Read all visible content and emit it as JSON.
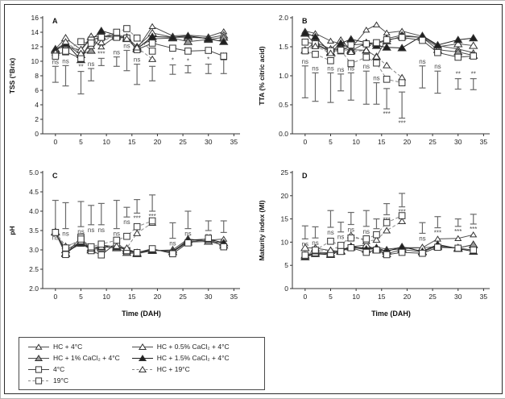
{
  "figure": {
    "background": "#ffffff",
    "axis_color": "#333333",
    "errorbar_color": "#6a6a6a",
    "time_axis_label": "Time (DAH)"
  },
  "treatments": [
    {
      "label": "HC + 4°C",
      "marker": "triangle-open",
      "dash": false,
      "size": 3.2,
      "color": "#4d4d4d"
    },
    {
      "label": "HC + 0.5% CaCl₂ + 4°C",
      "marker": "triangle-open",
      "dash": false,
      "size": 4.2,
      "color": "#4d4d4d"
    },
    {
      "label": "HC + 1% CaCl₂ + 4°C",
      "marker": "triangle-gray",
      "dash": false,
      "size": 4.2,
      "color": "#4d4d4d"
    },
    {
      "label": "HC + 1.5% CaCl₂ + 4°C",
      "marker": "triangle-filled",
      "dash": false,
      "size": 4.2,
      "color": "#1f1f1f"
    },
    {
      "label": "4°C",
      "marker": "square-open",
      "dash": false,
      "size": 3.8,
      "color": "#454545"
    },
    {
      "label": "HC + 19°C",
      "marker": "triangle-open",
      "dash": true,
      "size": 3.6,
      "color": "#8a8a8a"
    },
    {
      "label": "19°C",
      "marker": "square-open",
      "dash": true,
      "size": 3.8,
      "color": "#8a8a8a"
    }
  ],
  "legend": {
    "columns": [
      [
        0,
        2,
        4,
        6
      ],
      [
        1,
        3,
        5
      ]
    ]
  },
  "chart_data": [
    {
      "panel": "A",
      "type": "line",
      "ylabel": "TSS (°Brix)",
      "xlabel": "",
      "ylim": [
        0,
        16
      ],
      "yticks": [
        "0",
        "2",
        "4",
        "6",
        "8",
        "10",
        "12",
        "14",
        "16"
      ],
      "xlim": [
        -2.5,
        36.2
      ],
      "xticks": [
        "0",
        "5",
        "10",
        "15",
        "20",
        "25",
        "30",
        "35"
      ],
      "x": [
        0,
        2,
        5,
        7,
        9,
        12,
        14,
        16,
        19,
        23,
        26,
        30,
        33
      ],
      "sig_pos": "above",
      "series": [
        {
          "name": "HC + 4°C",
          "values": [
            11.6,
            12.1,
            11.5,
            13.2,
            12.0,
            13.5,
            13.2,
            11.7,
            14.8,
            13.5,
            13.6,
            13.4,
            14.1
          ]
        },
        {
          "name": "HC + 0.5% CaCl₂ + 4°C",
          "values": [
            11.7,
            13.2,
            11.6,
            13.4,
            13.4,
            13.7,
            13.3,
            12.0,
            13.9,
            13.3,
            13.3,
            13.2,
            13.6
          ]
        },
        {
          "name": "HC + 1% CaCl₂ + 4°C",
          "values": [
            11.5,
            12.4,
            10.9,
            11.5,
            13.5,
            13.4,
            13.1,
            11.8,
            13.1,
            13.2,
            12.7,
            13.0,
            13.3
          ]
        },
        {
          "name": "HC + 1.5% CaCl₂ + 4°C",
          "values": [
            11.6,
            12.5,
            10.2,
            12.9,
            14.2,
            13.6,
            13.3,
            11.7,
            13.4,
            13.3,
            13.5,
            13.1,
            12.7
          ]
        },
        {
          "name": "4°C",
          "values": [
            10.9,
            11.3,
            10.4,
            12.9,
            13.4,
            13.3,
            13.2,
            11.6,
            12.5,
            11.8,
            11.4,
            11.5,
            10.7
          ]
        },
        {
          "name": "HC + 19°C",
          "values": [
            11.2,
            12.7,
            11.1,
            12.1,
            12.6,
            13.8,
            13.1,
            11.9,
            10.3
          ]
        },
        {
          "name": "19°C",
          "values": [
            10.7,
            11.4,
            12.7,
            12.5,
            13.3,
            14.0,
            14.5,
            13.2,
            11.4
          ]
        }
      ],
      "errorbars": [
        {
          "x": 0,
          "top": 9.3,
          "bottom": 7.1,
          "label": "ns"
        },
        {
          "x": 2,
          "top": 9.4,
          "bottom": 6.6,
          "label": "ns"
        },
        {
          "x": 5,
          "top": 8.6,
          "bottom": 5.5,
          "label": "**"
        },
        {
          "x": 7,
          "top": 9.0,
          "bottom": 7.3,
          "label": "ns"
        },
        {
          "x": 9,
          "top": 10.4,
          "bottom": 9.4,
          "label": "***"
        },
        {
          "x": 12,
          "top": 10.6,
          "bottom": 9.3,
          "label": "ns"
        },
        {
          "x": 14,
          "top": 11.5,
          "bottom": 8.7,
          "label": "ns"
        },
        {
          "x": 16,
          "top": 9.6,
          "bottom": 6.8,
          "label": "ns"
        },
        {
          "x": 19,
          "top": 9.3,
          "bottom": 7.3,
          "label": "***"
        },
        {
          "x": 23,
          "top": 9.5,
          "bottom": 8.2,
          "label": "*"
        },
        {
          "x": 26,
          "top": 9.4,
          "bottom": 8.4,
          "label": "*"
        },
        {
          "x": 30,
          "top": 9.6,
          "bottom": 8.3,
          "label": "*"
        },
        {
          "x": 33,
          "top": 10.2,
          "bottom": 8.3,
          "label": "***"
        }
      ]
    },
    {
      "panel": "B",
      "type": "line",
      "ylabel": "TTA (% citric acid)",
      "xlabel": "",
      "ylim": [
        0,
        2
      ],
      "yticks": [
        "0.0",
        "0.5",
        "1.0",
        "1.5",
        "2.0"
      ],
      "xlim": [
        -2.5,
        36.2
      ],
      "xticks": [
        "0",
        "5",
        "10",
        "15",
        "20",
        "25",
        "30",
        "35"
      ],
      "x": [
        0,
        2,
        5,
        7,
        9,
        12,
        14,
        16,
        19,
        23,
        26,
        30,
        33
      ],
      "sig_pos": "above",
      "series": [
        {
          "name": "HC + 4°C",
          "values": [
            1.77,
            1.73,
            1.6,
            1.55,
            1.47,
            1.79,
            1.88,
            1.74,
            1.77,
            1.68,
            1.52,
            1.46,
            1.4
          ]
        },
        {
          "name": "HC + 0.5% CaCl₂ + 4°C",
          "values": [
            1.44,
            1.58,
            1.46,
            1.61,
            1.45,
            1.44,
            1.33,
            1.64,
            1.7,
            1.66,
            1.5,
            1.55,
            1.52
          ]
        },
        {
          "name": "HC + 1% CaCl₂ + 4°C",
          "values": [
            1.73,
            1.54,
            1.41,
            1.5,
            1.43,
            1.57,
            1.56,
            1.6,
            1.68,
            1.66,
            1.45,
            1.41,
            1.35
          ]
        },
        {
          "name": "HC + 1.5% CaCl₂ + 4°C",
          "values": [
            1.74,
            1.67,
            1.4,
            1.56,
            1.63,
            1.57,
            1.52,
            1.49,
            1.48,
            1.69,
            1.53,
            1.62,
            1.65
          ]
        },
        {
          "name": "4°C",
          "values": [
            1.58,
            1.55,
            1.43,
            1.43,
            1.53,
            1.55,
            1.57,
            1.62,
            1.66,
            1.61,
            1.4,
            1.32,
            1.34
          ]
        },
        {
          "name": "HC + 19°C",
          "values": [
            1.45,
            1.51,
            1.39,
            1.47,
            1.41,
            1.44,
            1.33,
            1.18,
            0.97
          ]
        },
        {
          "name": "19°C",
          "values": [
            1.43,
            1.37,
            1.26,
            1.44,
            1.21,
            1.32,
            1.22,
            0.94,
            0.88
          ]
        }
      ],
      "errorbars": [
        {
          "x": 0,
          "top": 1.17,
          "bottom": 0.62,
          "label": "ns"
        },
        {
          "x": 2,
          "top": 1.05,
          "bottom": 0.56,
          "label": "ns"
        },
        {
          "x": 5,
          "top": 1.05,
          "bottom": 0.54,
          "label": "ns"
        },
        {
          "x": 7,
          "top": 1.03,
          "bottom": 0.74,
          "label": "ns"
        },
        {
          "x": 9,
          "top": 1.05,
          "bottom": 0.58,
          "label": "ns"
        },
        {
          "x": 12,
          "top": 1.08,
          "bottom": 0.51,
          "label": "ns"
        },
        {
          "x": 14,
          "top": 0.88,
          "bottom": 0.51,
          "label": "ns"
        },
        {
          "x": 16,
          "top": 0.78,
          "bottom": 0.43,
          "label": "***",
          "pos": "below"
        },
        {
          "x": 19,
          "top": 0.72,
          "bottom": 0.27,
          "label": "***",
          "pos": "below"
        },
        {
          "x": 23,
          "top": 1.17,
          "bottom": 0.79,
          "label": "ns"
        },
        {
          "x": 26,
          "top": 1.08,
          "bottom": 0.7,
          "label": "ns"
        },
        {
          "x": 30,
          "top": 0.95,
          "bottom": 0.77,
          "label": "**"
        },
        {
          "x": 33,
          "top": 0.95,
          "bottom": 0.76,
          "label": "**"
        }
      ]
    },
    {
      "panel": "C",
      "type": "line",
      "ylabel": "pH",
      "xlabel": "Time (DAH)",
      "ylim": [
        2,
        5
      ],
      "yticks": [
        "2.0",
        "2.5",
        "3.0",
        "3.5",
        "4.0",
        "4.5",
        "5.0"
      ],
      "xlim": [
        -2.5,
        36.2
      ],
      "xticks": [
        "0",
        "5",
        "10",
        "15",
        "20",
        "25",
        "30",
        "35"
      ],
      "x": [
        0,
        2,
        5,
        7,
        9,
        12,
        14,
        16,
        19,
        23,
        26,
        30,
        33
      ],
      "sig_pos": "below",
      "series": [
        {
          "name": "HC + 4°C",
          "values": [
            3.47,
            2.95,
            3.15,
            3.02,
            3.1,
            3.08,
            3.0,
            2.93,
            3.0,
            2.97,
            3.22,
            3.25,
            3.28
          ]
        },
        {
          "name": "HC + 0.5% CaCl₂ + 4°C",
          "values": [
            3.46,
            2.92,
            3.18,
            3.0,
            3.05,
            3.12,
            2.98,
            2.9,
            3.0,
            2.95,
            3.2,
            3.22,
            3.18
          ]
        },
        {
          "name": "HC + 1% CaCl₂ + 4°C",
          "values": [
            3.46,
            3.0,
            3.2,
            3.05,
            3.08,
            3.05,
            2.93,
            2.9,
            2.98,
            3.0,
            3.28,
            3.22,
            3.12
          ]
        },
        {
          "name": "HC + 1.5% CaCl₂ + 4°C",
          "values": [
            3.47,
            2.9,
            3.22,
            3.0,
            3.12,
            3.08,
            3.02,
            2.93,
            3.0,
            2.95,
            3.25,
            3.28,
            3.18
          ]
        },
        {
          "name": "4°C",
          "values": [
            3.45,
            2.88,
            3.33,
            2.98,
            2.87,
            3.18,
            2.98,
            2.93,
            3.03,
            2.9,
            3.18,
            3.3,
            3.08
          ]
        },
        {
          "name": "HC + 19°C",
          "values": [
            3.46,
            3.1,
            3.22,
            3.03,
            3.08,
            3.1,
            3.05,
            3.43,
            3.7
          ]
        },
        {
          "name": "19°C",
          "values": [
            3.45,
            3.05,
            3.28,
            3.08,
            3.15,
            3.25,
            3.35,
            3.6,
            3.75
          ]
        }
      ],
      "errorbars": [
        {
          "x": 0,
          "top": 4.28,
          "bottom": 3.45,
          "label": "ns"
        },
        {
          "x": 2,
          "top": 4.22,
          "bottom": 3.55,
          "label": "ns"
        },
        {
          "x": 5,
          "top": 4.25,
          "bottom": 3.6,
          "label": "ns"
        },
        {
          "x": 7,
          "top": 4.15,
          "bottom": 3.65,
          "label": "ns"
        },
        {
          "x": 9,
          "top": 4.2,
          "bottom": 3.65,
          "label": "ns"
        },
        {
          "x": 12,
          "top": 4.28,
          "bottom": 3.55,
          "label": "ns"
        },
        {
          "x": 14,
          "top": 4.1,
          "bottom": 3.85,
          "label": "ns"
        },
        {
          "x": 16,
          "top": 4.3,
          "bottom": 3.95,
          "label": "***"
        },
        {
          "x": 19,
          "top": 4.42,
          "bottom": 4.0,
          "label": "***"
        },
        {
          "x": 23,
          "top": 3.7,
          "bottom": 3.3,
          "label": "ns"
        },
        {
          "x": 26,
          "top": 4.0,
          "bottom": 3.55,
          "label": "ns"
        },
        {
          "x": 30,
          "top": 3.75,
          "bottom": 3.5,
          "label": "ns"
        },
        {
          "x": 33,
          "top": 3.75,
          "bottom": 3.45,
          "label": ""
        }
      ]
    },
    {
      "panel": "D",
      "type": "line",
      "ylabel": "Maturity index (MI)",
      "xlabel": "Time (DAH)",
      "ylim": [
        0,
        25
      ],
      "yticks": [
        "0",
        "5",
        "10",
        "15",
        "20",
        "25"
      ],
      "xlim": [
        -2.5,
        36.2
      ],
      "xticks": [
        "0",
        "5",
        "10",
        "15",
        "20",
        "25",
        "30",
        "35"
      ],
      "x": [
        0,
        2,
        5,
        7,
        9,
        12,
        14,
        16,
        19,
        23,
        26,
        30,
        33
      ],
      "sig_pos": "below",
      "series": [
        {
          "name": "HC + 4°C",
          "values": [
            7.0,
            7.6,
            7.8,
            8.3,
            9.0,
            8.7,
            8.9,
            8.5,
            8.8,
            8.8,
            10.7,
            10.8,
            11.6
          ]
        },
        {
          "name": "HC + 0.5% CaCl₂ + 4°C",
          "values": [
            8.8,
            8.7,
            8.2,
            8.0,
            9.0,
            9.4,
            8.3,
            8.2,
            8.6,
            8.8,
            9.0,
            8.8,
            9.4
          ]
        },
        {
          "name": "HC + 1% CaCl₂ + 4°C",
          "values": [
            7.2,
            7.8,
            7.6,
            8.1,
            8.9,
            8.4,
            8.6,
            7.5,
            8.4,
            7.9,
            9.2,
            8.7,
            9.5
          ]
        },
        {
          "name": "HC + 1.5% CaCl₂ + 4°C",
          "values": [
            6.8,
            7.5,
            7.3,
            8.2,
            9.1,
            8.5,
            8.8,
            8.0,
            9.0,
            8.0,
            9.5,
            8.6,
            8.0
          ]
        },
        {
          "name": "4°C",
          "values": [
            7.0,
            7.7,
            7.5,
            8.0,
            8.8,
            7.8,
            8.3,
            7.3,
            7.8,
            7.6,
            8.9,
            8.7,
            8.3
          ]
        },
        {
          "name": "HC + 19°C",
          "values": [
            7.1,
            8.0,
            8.3,
            9.2,
            11.5,
            10.2,
            10.5,
            12.5,
            14.5
          ]
        },
        {
          "name": "19°C",
          "values": [
            7.2,
            8.3,
            10.2,
            9.3,
            10.9,
            10.7,
            11.6,
            14.2,
            15.7
          ]
        }
      ],
      "errorbars": [
        {
          "x": 0,
          "top": 13.5,
          "bottom": 10.7,
          "label": "ns"
        },
        {
          "x": 2,
          "top": 13.3,
          "bottom": 10.9,
          "label": "ns"
        },
        {
          "x": 5,
          "top": 16.8,
          "bottom": 13.2,
          "label": "ns"
        },
        {
          "x": 7,
          "top": 14.3,
          "bottom": 12.2,
          "label": "ns"
        },
        {
          "x": 9,
          "top": 16.4,
          "bottom": 13.8,
          "label": "ns"
        },
        {
          "x": 12,
          "top": 16.8,
          "bottom": 13.4,
          "label": "ns"
        },
        {
          "x": 14,
          "top": 15.0,
          "bottom": 12.9,
          "label": "ns"
        },
        {
          "x": 16,
          "top": 18.3,
          "bottom": 15.9,
          "label": "***"
        },
        {
          "x": 19,
          "top": 20.5,
          "bottom": 17.6,
          "label": "***"
        },
        {
          "x": 23,
          "top": 14.2,
          "bottom": 11.9,
          "label": "ns"
        },
        {
          "x": 26,
          "top": 15.5,
          "bottom": 13.1,
          "label": "***"
        },
        {
          "x": 30,
          "top": 15.0,
          "bottom": 13.4,
          "label": "***"
        },
        {
          "x": 33,
          "top": 16.0,
          "bottom": 13.9,
          "label": "***"
        }
      ]
    }
  ]
}
